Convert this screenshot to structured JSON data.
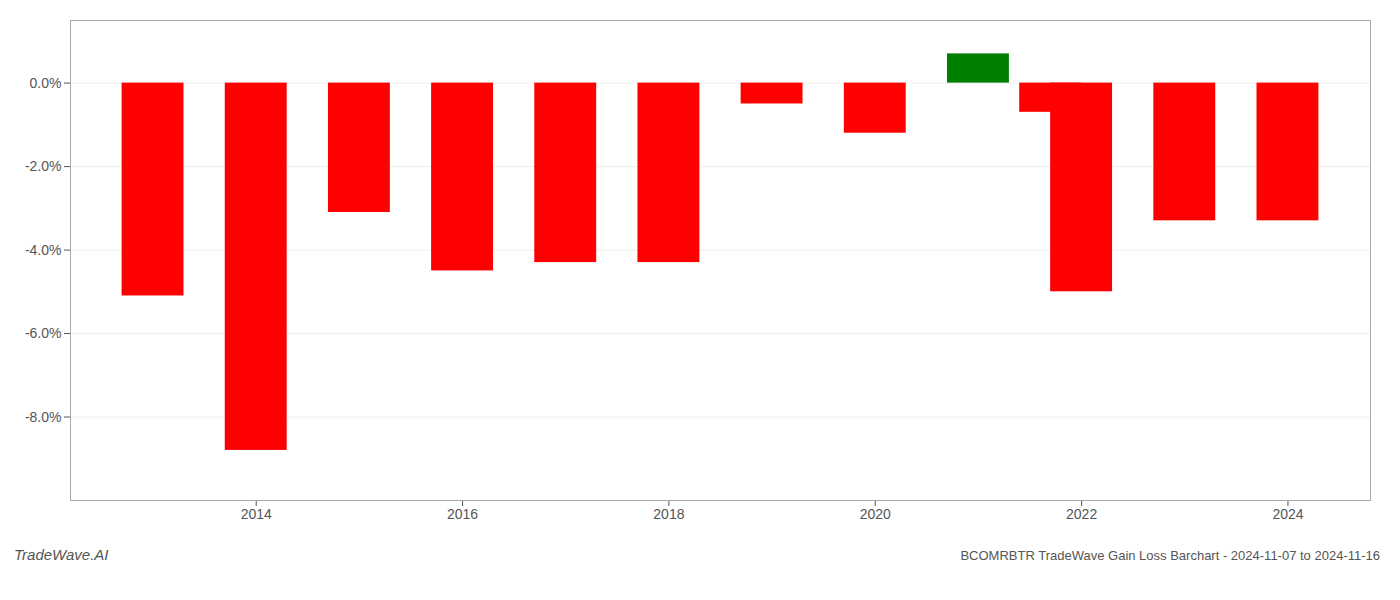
{
  "chart_data": {
    "type": "bar",
    "title": "BCOMRBTR TradeWave Gain Loss Barchart - 2024-11-07 to 2024-11-16",
    "annotations": [
      "TradeWave.AI"
    ],
    "x": [
      2013,
      2014,
      2015,
      2016,
      2017,
      2018,
      2019,
      2020,
      2021,
      2021.7,
      2022,
      2023,
      2024
    ],
    "values": [
      -0.051,
      -0.088,
      -0.031,
      -0.045,
      -0.043,
      -0.043,
      -0.005,
      -0.012,
      0.007,
      -0.007,
      -0.05,
      -0.033,
      -0.033
    ],
    "colors": [
      "#ff0000",
      "#ff0000",
      "#ff0000",
      "#ff0000",
      "#ff0000",
      "#ff0000",
      "#ff0000",
      "#ff0000",
      "#008000",
      "#ff0000",
      "#ff0000",
      "#ff0000",
      "#ff0000"
    ],
    "xlim": [
      2012.2,
      2024.8
    ],
    "xticks": [
      2014,
      2016,
      2018,
      2020,
      2022,
      2024
    ],
    "ylim": [
      -0.1,
      0.015
    ],
    "yticks": [
      {
        "value": 0.0,
        "label": "0.0%"
      },
      {
        "value": -0.02,
        "label": "-2.0%"
      },
      {
        "value": -0.04,
        "label": "-4.0%"
      },
      {
        "value": -0.06,
        "label": "-6.0%"
      },
      {
        "value": -0.08,
        "label": "-8.0%"
      }
    ],
    "grid": true
  }
}
